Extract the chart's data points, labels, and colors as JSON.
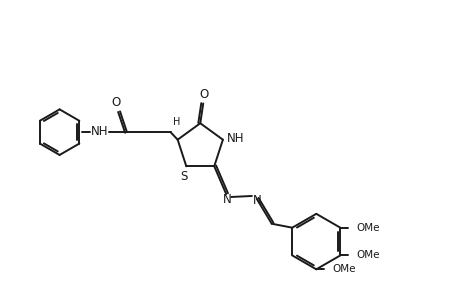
{
  "background_color": "#ffffff",
  "line_color": "#1a1a1a",
  "line_width": 1.4,
  "font_size": 8.5,
  "figsize": [
    4.6,
    3.0
  ],
  "dpi": 100,
  "xlim": [
    0,
    460
  ],
  "ylim": [
    0,
    300
  ]
}
